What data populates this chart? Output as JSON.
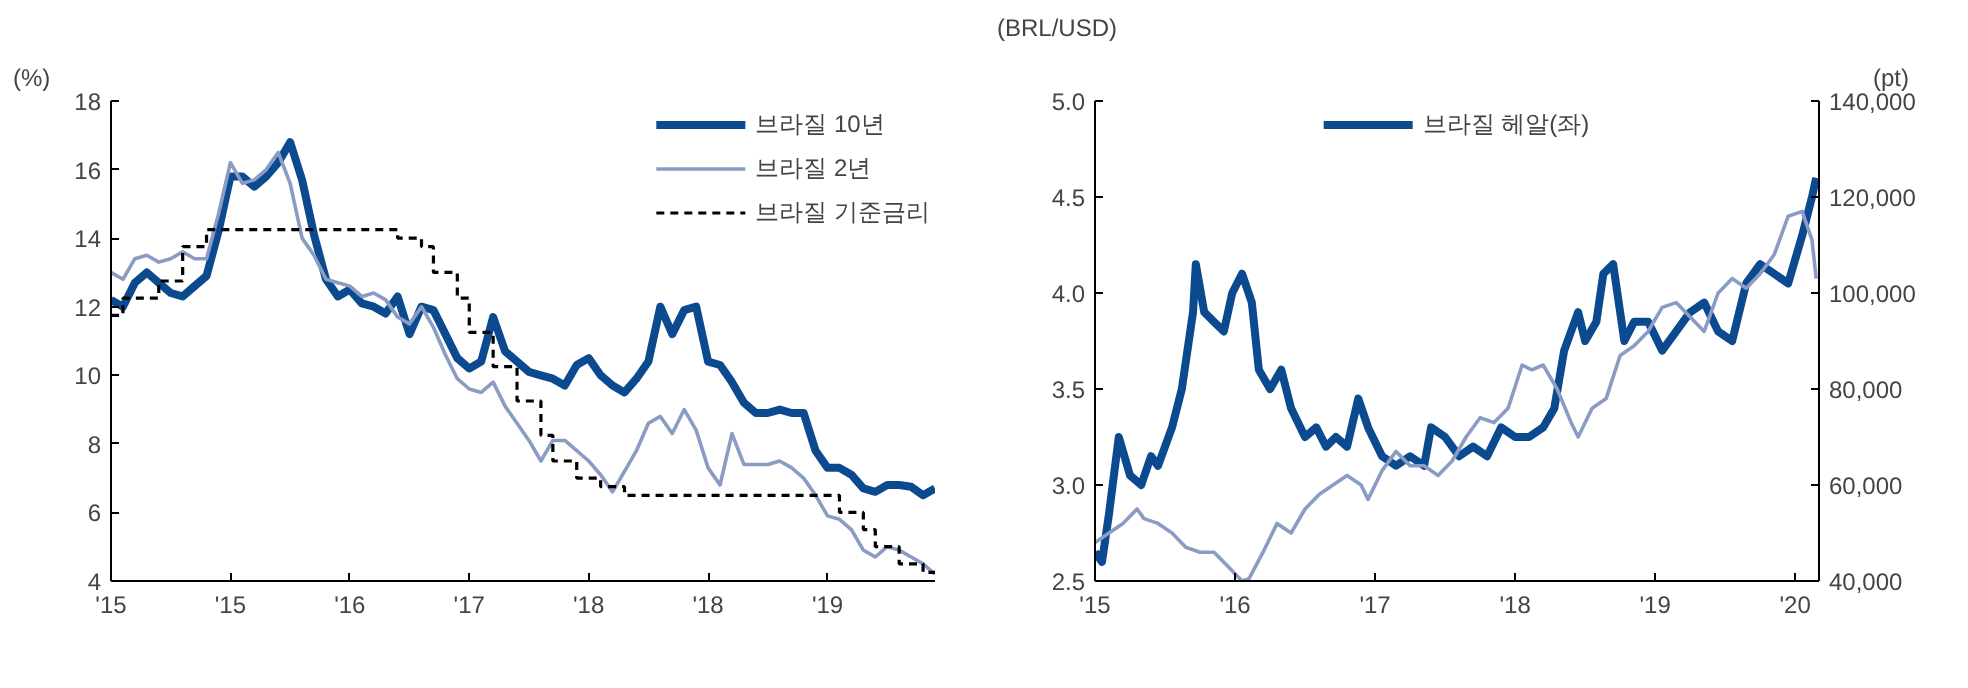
{
  "chart_data": [
    {
      "type": "line",
      "ylabel": "(%)",
      "ylim": [
        4,
        18
      ],
      "categories": [
        "'15",
        null,
        null,
        null,
        null,
        null,
        null,
        null,
        null,
        null,
        "'15",
        null,
        null,
        null,
        null,
        null,
        null,
        null,
        null,
        null,
        "'16",
        null,
        null,
        null,
        null,
        null,
        null,
        null,
        null,
        null,
        "'17",
        null,
        null,
        null,
        null,
        null,
        null,
        null,
        null,
        null,
        "'18",
        null,
        null,
        null,
        null,
        null,
        null,
        null,
        null,
        null,
        "'18",
        null,
        null,
        null,
        null,
        null,
        null,
        null,
        null,
        null,
        "'19",
        null,
        null,
        null,
        null,
        null,
        null,
        null,
        null,
        null
      ],
      "yticks": [
        4,
        6,
        8,
        10,
        12,
        14,
        16,
        18
      ],
      "legend": "top right",
      "series": [
        {
          "name": "브라질 10년",
          "color": "#0b4a8f",
          "values": [
            12.2,
            12.0,
            12.7,
            13.0,
            12.7,
            12.4,
            12.3,
            12.6,
            12.9,
            14.2,
            15.8,
            15.8,
            15.5,
            15.8,
            16.2,
            16.8,
            15.7,
            14.1,
            12.8,
            12.3,
            12.5,
            12.1,
            12.0,
            11.8,
            12.3,
            11.2,
            12.0,
            11.9,
            11.2,
            10.5,
            10.2,
            10.4,
            11.7,
            10.7,
            10.4,
            10.1,
            10.0,
            9.9,
            9.7,
            10.3,
            10.5,
            10.0,
            9.7,
            9.5,
            9.9,
            10.4,
            12.0,
            11.2,
            11.9,
            12.0,
            10.4,
            10.3,
            9.8,
            9.2,
            8.9,
            8.9,
            9.0,
            8.9,
            8.9,
            7.8,
            7.3,
            7.3,
            7.1,
            6.7,
            6.6,
            6.8,
            6.8,
            6.75,
            6.5,
            6.7
          ]
        },
        {
          "name": "브라질 2년",
          "color": "#8a9cc4",
          "values": [
            13.0,
            12.8,
            13.4,
            13.5,
            13.3,
            13.4,
            13.6,
            13.4,
            13.4,
            14.7,
            16.2,
            15.6,
            15.7,
            16.0,
            16.5,
            15.6,
            14.0,
            13.5,
            12.8,
            12.7,
            12.6,
            12.3,
            12.4,
            12.2,
            11.7,
            11.5,
            12.0,
            11.4,
            10.6,
            9.9,
            9.6,
            9.5,
            9.8,
            9.1,
            8.6,
            8.1,
            7.5,
            8.1,
            8.1,
            7.8,
            7.5,
            7.1,
            6.6,
            7.2,
            7.8,
            8.6,
            8.8,
            8.3,
            9.0,
            8.4,
            7.3,
            6.8,
            8.3,
            7.4,
            7.4,
            7.4,
            7.5,
            7.3,
            7.0,
            6.5,
            5.9,
            5.8,
            5.5,
            4.9,
            4.7,
            5.0,
            4.9,
            4.7,
            4.5,
            4.2
          ]
        },
        {
          "name": "브라질 기준금리",
          "type": "step",
          "line_style": "dashed",
          "color": "#000000",
          "values": [
            11.75,
            12.25,
            12.25,
            12.25,
            12.75,
            12.75,
            13.75,
            13.75,
            14.25,
            14.25,
            14.25,
            14.25,
            14.25,
            14.25,
            14.25,
            14.25,
            14.25,
            14.25,
            14.25,
            14.25,
            14.25,
            14.25,
            14.25,
            14.25,
            14.0,
            14.0,
            13.75,
            13.0,
            13.0,
            12.25,
            11.25,
            11.25,
            10.25,
            10.25,
            9.25,
            9.25,
            8.25,
            7.5,
            7.5,
            7.0,
            7.0,
            6.75,
            6.75,
            6.5,
            6.5,
            6.5,
            6.5,
            6.5,
            6.5,
            6.5,
            6.5,
            6.5,
            6.5,
            6.5,
            6.5,
            6.5,
            6.5,
            6.5,
            6.5,
            6.5,
            6.5,
            6.0,
            6.0,
            5.5,
            5.0,
            5.0,
            4.5,
            4.5,
            4.25,
            4.25
          ]
        }
      ]
    },
    {
      "type": "line",
      "ylabel": "(BRL/USD)",
      "y2label": "(pt)",
      "xlim": [
        2015,
        2020.17
      ],
      "ylim": [
        2.5,
        5.0
      ],
      "y2lim": [
        40000,
        140000
      ],
      "xticks": [
        {
          "value": 2015,
          "label": "'15"
        },
        {
          "value": 2016,
          "label": "'16"
        },
        {
          "value": 2017,
          "label": "'17"
        },
        {
          "value": 2018,
          "label": "'18"
        },
        {
          "value": 2019,
          "label": "'19"
        },
        {
          "value": 2020,
          "label": "'20"
        }
      ],
      "yticks": [
        {
          "value": 2.5,
          "label": "2.5"
        },
        {
          "value": 3.0,
          "label": "3.0"
        },
        {
          "value": 3.5,
          "label": "3.5"
        },
        {
          "value": 4.0,
          "label": "4.0"
        },
        {
          "value": 4.5,
          "label": "4.5"
        },
        {
          "value": 5.0,
          "label": "5.0"
        }
      ],
      "y2ticks": [
        {
          "value": 40000,
          "label": "40,000"
        },
        {
          "value": 60000,
          "label": "60,000"
        },
        {
          "value": 80000,
          "label": "80,000"
        },
        {
          "value": 100000,
          "label": "100,000"
        },
        {
          "value": 120000,
          "label": "120,000"
        },
        {
          "value": 140000,
          "label": "140,000"
        }
      ],
      "legend": "top",
      "series": [
        {
          "name": "브라질 헤알(좌)",
          "color": "#0b4a8f",
          "x": [
            2015.0,
            2015.05,
            2015.1,
            2015.17,
            2015.25,
            2015.33,
            2015.4,
            2015.45,
            2015.55,
            2015.62,
            2015.7,
            2015.72,
            2015.78,
            2015.85,
            2015.92,
            2015.98,
            2016.05,
            2016.12,
            2016.17,
            2016.25,
            2016.33,
            2016.4,
            2016.5,
            2016.58,
            2016.65,
            2016.72,
            2016.8,
            2016.88,
            2016.95,
            2017.05,
            2017.15,
            2017.25,
            2017.35,
            2017.4,
            2017.5,
            2017.6,
            2017.7,
            2017.8,
            2017.9,
            2018.0,
            2018.1,
            2018.2,
            2018.28,
            2018.35,
            2018.45,
            2018.5,
            2018.58,
            2018.63,
            2018.7,
            2018.78,
            2018.85,
            2018.95,
            2019.05,
            2019.15,
            2019.25,
            2019.35,
            2019.45,
            2019.55,
            2019.65,
            2019.75,
            2019.85,
            2019.95,
            2020.05,
            2020.12,
            2020.15
          ],
          "values": [
            2.65,
            2.6,
            2.85,
            3.25,
            3.05,
            3.0,
            3.15,
            3.1,
            3.3,
            3.5,
            3.9,
            4.15,
            3.9,
            3.85,
            3.8,
            4.0,
            4.1,
            3.95,
            3.6,
            3.5,
            3.6,
            3.4,
            3.25,
            3.3,
            3.2,
            3.25,
            3.2,
            3.45,
            3.3,
            3.15,
            3.1,
            3.15,
            3.1,
            3.3,
            3.25,
            3.15,
            3.2,
            3.15,
            3.3,
            3.25,
            3.25,
            3.3,
            3.4,
            3.7,
            3.9,
            3.75,
            3.85,
            4.1,
            4.15,
            3.75,
            3.85,
            3.85,
            3.7,
            3.8,
            3.9,
            3.95,
            3.8,
            3.75,
            4.05,
            4.15,
            4.1,
            4.05,
            4.3,
            4.5,
            4.6
          ]
        },
        {
          "axis": "y2",
          "color": "#8a9cc4",
          "x": [
            2015.0,
            2015.1,
            2015.2,
            2015.3,
            2015.35,
            2015.45,
            2015.55,
            2015.65,
            2015.75,
            2015.85,
            2015.95,
            2016.05,
            2016.1,
            2016.2,
            2016.3,
            2016.4,
            2016.5,
            2016.6,
            2016.7,
            2016.8,
            2016.9,
            2016.95,
            2017.05,
            2017.15,
            2017.25,
            2017.35,
            2017.45,
            2017.55,
            2017.65,
            2017.75,
            2017.85,
            2017.95,
            2018.05,
            2018.12,
            2018.2,
            2018.3,
            2018.4,
            2018.45,
            2018.55,
            2018.65,
            2018.75,
            2018.85,
            2018.95,
            2019.05,
            2019.15,
            2019.25,
            2019.35,
            2019.45,
            2019.55,
            2019.65,
            2019.75,
            2019.85,
            2019.95,
            2020.05,
            2020.12,
            2020.15
          ],
          "values": [
            48000,
            50000,
            52000,
            55000,
            53000,
            52000,
            50000,
            47000,
            46000,
            46000,
            43000,
            40000,
            40500,
            46000,
            52000,
            50000,
            55000,
            58000,
            60000,
            62000,
            60000,
            57000,
            63000,
            67000,
            64000,
            64000,
            62000,
            65000,
            70000,
            74000,
            73000,
            76000,
            85000,
            84000,
            85000,
            80000,
            73000,
            70000,
            76000,
            78000,
            87000,
            89000,
            92000,
            97000,
            98000,
            95000,
            92000,
            100000,
            103000,
            101000,
            104000,
            108000,
            116000,
            117000,
            111000,
            103000
          ]
        }
      ]
    }
  ]
}
